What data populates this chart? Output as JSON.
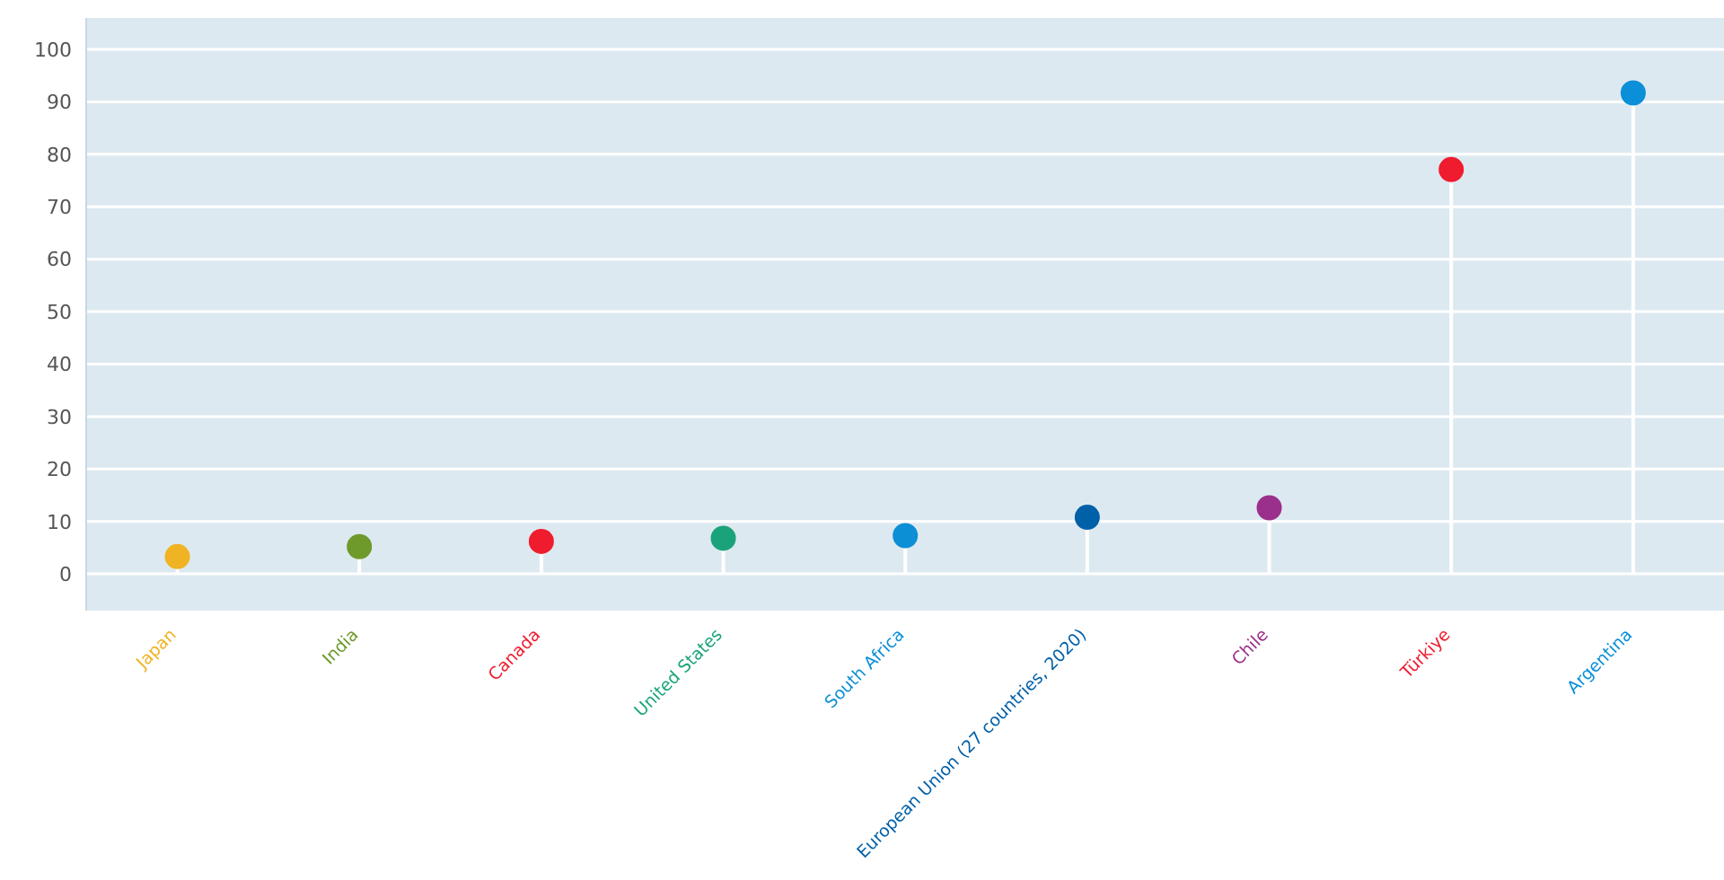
{
  "chart_data": {
    "type": "lollipop",
    "categories": [
      "Japan",
      "India",
      "Canada",
      "United States",
      "South Africa",
      "European Union (27 countries, 2020)",
      "Chile",
      "Türkiye",
      "Argentina"
    ],
    "values": [
      3.3,
      5.2,
      6.2,
      6.8,
      7.3,
      10.8,
      12.6,
      77.1,
      91.7
    ],
    "colors": [
      "#f0b323",
      "#6e9a2c",
      "#ef1c2e",
      "#1aa37a",
      "#0d8fd6",
      "#0060a8",
      "#9b2f8c",
      "#ee1c2e",
      "#0a8fd8"
    ],
    "ylim": [
      -7,
      106
    ],
    "yticks": [
      0,
      10,
      20,
      30,
      40,
      50,
      60,
      70,
      80,
      90,
      100
    ],
    "grid": "y"
  }
}
